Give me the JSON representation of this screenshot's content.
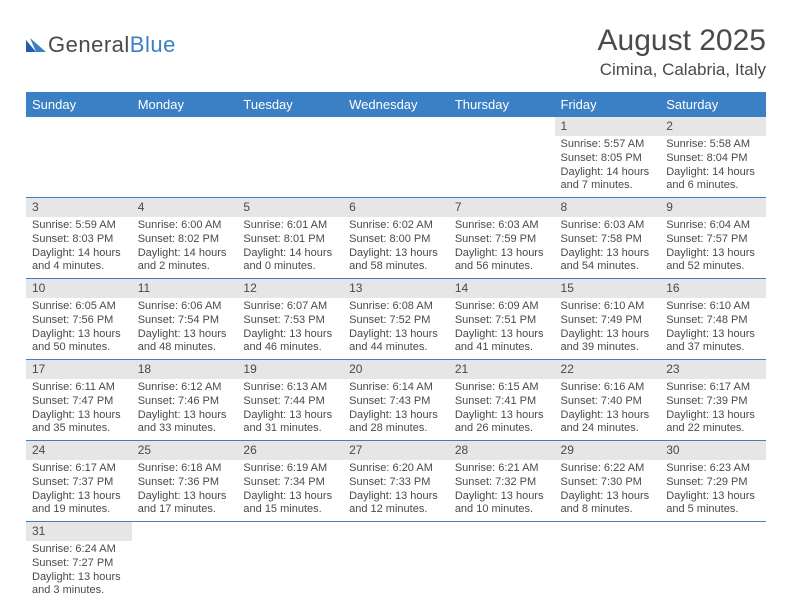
{
  "brand": {
    "part1": "General",
    "part2": "Blue"
  },
  "title": "August 2025",
  "location": "Cimina, Calabria, Italy",
  "colors": {
    "header_bg": "#3b7fc4",
    "header_text": "#ffffff",
    "daynum_bg": "#e6e6e6",
    "rule": "#3b7fc4",
    "body_text": "#4a4a4a"
  },
  "weekdays": [
    "Sunday",
    "Monday",
    "Tuesday",
    "Wednesday",
    "Thursday",
    "Friday",
    "Saturday"
  ],
  "weeks": [
    [
      null,
      null,
      null,
      null,
      null,
      {
        "n": "1",
        "sr": "Sunrise: 5:57 AM",
        "ss": "Sunset: 8:05 PM",
        "d1": "Daylight: 14 hours",
        "d2": "and 7 minutes."
      },
      {
        "n": "2",
        "sr": "Sunrise: 5:58 AM",
        "ss": "Sunset: 8:04 PM",
        "d1": "Daylight: 14 hours",
        "d2": "and 6 minutes."
      }
    ],
    [
      {
        "n": "3",
        "sr": "Sunrise: 5:59 AM",
        "ss": "Sunset: 8:03 PM",
        "d1": "Daylight: 14 hours",
        "d2": "and 4 minutes."
      },
      {
        "n": "4",
        "sr": "Sunrise: 6:00 AM",
        "ss": "Sunset: 8:02 PM",
        "d1": "Daylight: 14 hours",
        "d2": "and 2 minutes."
      },
      {
        "n": "5",
        "sr": "Sunrise: 6:01 AM",
        "ss": "Sunset: 8:01 PM",
        "d1": "Daylight: 14 hours",
        "d2": "and 0 minutes."
      },
      {
        "n": "6",
        "sr": "Sunrise: 6:02 AM",
        "ss": "Sunset: 8:00 PM",
        "d1": "Daylight: 13 hours",
        "d2": "and 58 minutes."
      },
      {
        "n": "7",
        "sr": "Sunrise: 6:03 AM",
        "ss": "Sunset: 7:59 PM",
        "d1": "Daylight: 13 hours",
        "d2": "and 56 minutes."
      },
      {
        "n": "8",
        "sr": "Sunrise: 6:03 AM",
        "ss": "Sunset: 7:58 PM",
        "d1": "Daylight: 13 hours",
        "d2": "and 54 minutes."
      },
      {
        "n": "9",
        "sr": "Sunrise: 6:04 AM",
        "ss": "Sunset: 7:57 PM",
        "d1": "Daylight: 13 hours",
        "d2": "and 52 minutes."
      }
    ],
    [
      {
        "n": "10",
        "sr": "Sunrise: 6:05 AM",
        "ss": "Sunset: 7:56 PM",
        "d1": "Daylight: 13 hours",
        "d2": "and 50 minutes."
      },
      {
        "n": "11",
        "sr": "Sunrise: 6:06 AM",
        "ss": "Sunset: 7:54 PM",
        "d1": "Daylight: 13 hours",
        "d2": "and 48 minutes."
      },
      {
        "n": "12",
        "sr": "Sunrise: 6:07 AM",
        "ss": "Sunset: 7:53 PM",
        "d1": "Daylight: 13 hours",
        "d2": "and 46 minutes."
      },
      {
        "n": "13",
        "sr": "Sunrise: 6:08 AM",
        "ss": "Sunset: 7:52 PM",
        "d1": "Daylight: 13 hours",
        "d2": "and 44 minutes."
      },
      {
        "n": "14",
        "sr": "Sunrise: 6:09 AM",
        "ss": "Sunset: 7:51 PM",
        "d1": "Daylight: 13 hours",
        "d2": "and 41 minutes."
      },
      {
        "n": "15",
        "sr": "Sunrise: 6:10 AM",
        "ss": "Sunset: 7:49 PM",
        "d1": "Daylight: 13 hours",
        "d2": "and 39 minutes."
      },
      {
        "n": "16",
        "sr": "Sunrise: 6:10 AM",
        "ss": "Sunset: 7:48 PM",
        "d1": "Daylight: 13 hours",
        "d2": "and 37 minutes."
      }
    ],
    [
      {
        "n": "17",
        "sr": "Sunrise: 6:11 AM",
        "ss": "Sunset: 7:47 PM",
        "d1": "Daylight: 13 hours",
        "d2": "and 35 minutes."
      },
      {
        "n": "18",
        "sr": "Sunrise: 6:12 AM",
        "ss": "Sunset: 7:46 PM",
        "d1": "Daylight: 13 hours",
        "d2": "and 33 minutes."
      },
      {
        "n": "19",
        "sr": "Sunrise: 6:13 AM",
        "ss": "Sunset: 7:44 PM",
        "d1": "Daylight: 13 hours",
        "d2": "and 31 minutes."
      },
      {
        "n": "20",
        "sr": "Sunrise: 6:14 AM",
        "ss": "Sunset: 7:43 PM",
        "d1": "Daylight: 13 hours",
        "d2": "and 28 minutes."
      },
      {
        "n": "21",
        "sr": "Sunrise: 6:15 AM",
        "ss": "Sunset: 7:41 PM",
        "d1": "Daylight: 13 hours",
        "d2": "and 26 minutes."
      },
      {
        "n": "22",
        "sr": "Sunrise: 6:16 AM",
        "ss": "Sunset: 7:40 PM",
        "d1": "Daylight: 13 hours",
        "d2": "and 24 minutes."
      },
      {
        "n": "23",
        "sr": "Sunrise: 6:17 AM",
        "ss": "Sunset: 7:39 PM",
        "d1": "Daylight: 13 hours",
        "d2": "and 22 minutes."
      }
    ],
    [
      {
        "n": "24",
        "sr": "Sunrise: 6:17 AM",
        "ss": "Sunset: 7:37 PM",
        "d1": "Daylight: 13 hours",
        "d2": "and 19 minutes."
      },
      {
        "n": "25",
        "sr": "Sunrise: 6:18 AM",
        "ss": "Sunset: 7:36 PM",
        "d1": "Daylight: 13 hours",
        "d2": "and 17 minutes."
      },
      {
        "n": "26",
        "sr": "Sunrise: 6:19 AM",
        "ss": "Sunset: 7:34 PM",
        "d1": "Daylight: 13 hours",
        "d2": "and 15 minutes."
      },
      {
        "n": "27",
        "sr": "Sunrise: 6:20 AM",
        "ss": "Sunset: 7:33 PM",
        "d1": "Daylight: 13 hours",
        "d2": "and 12 minutes."
      },
      {
        "n": "28",
        "sr": "Sunrise: 6:21 AM",
        "ss": "Sunset: 7:32 PM",
        "d1": "Daylight: 13 hours",
        "d2": "and 10 minutes."
      },
      {
        "n": "29",
        "sr": "Sunrise: 6:22 AM",
        "ss": "Sunset: 7:30 PM",
        "d1": "Daylight: 13 hours",
        "d2": "and 8 minutes."
      },
      {
        "n": "30",
        "sr": "Sunrise: 6:23 AM",
        "ss": "Sunset: 7:29 PM",
        "d1": "Daylight: 13 hours",
        "d2": "and 5 minutes."
      }
    ],
    [
      {
        "n": "31",
        "sr": "Sunrise: 6:24 AM",
        "ss": "Sunset: 7:27 PM",
        "d1": "Daylight: 13 hours",
        "d2": "and 3 minutes."
      },
      null,
      null,
      null,
      null,
      null,
      null
    ]
  ]
}
